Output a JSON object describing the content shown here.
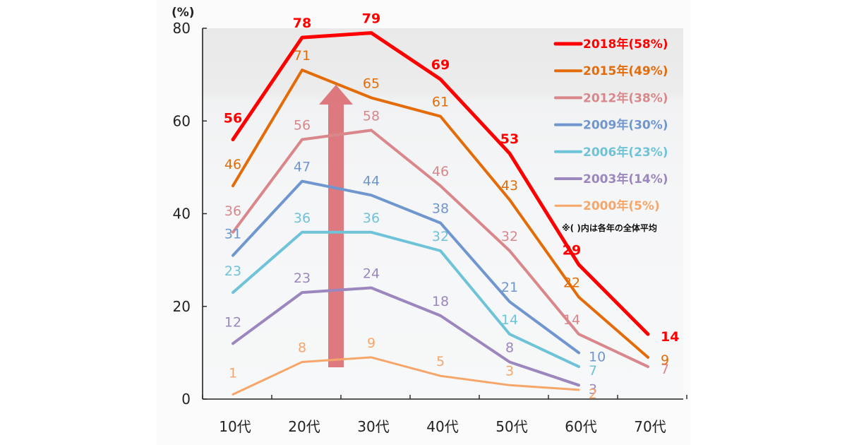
{
  "chart_data": {
    "type": "line",
    "title": "",
    "xlabel": "",
    "ylabel": "(%)",
    "ylim": [
      0,
      80
    ],
    "yticks": [
      0,
      20,
      40,
      60,
      80
    ],
    "grid": false,
    "legend_position": "top-right",
    "categories": [
      "10代",
      "20代",
      "30代",
      "40代",
      "50代",
      "60代",
      "70代"
    ],
    "series": [
      {
        "name": "2018年(58%)",
        "color": "#ff0000",
        "bold": true,
        "values": [
          56,
          78,
          79,
          69,
          53,
          29,
          14
        ]
      },
      {
        "name": "2015年(49%)",
        "color": "#e36c09",
        "bold": false,
        "values": [
          46,
          71,
          65,
          61,
          43,
          22,
          9
        ]
      },
      {
        "name": "2012年(38%)",
        "color": "#d9878a",
        "bold": false,
        "values": [
          36,
          56,
          58,
          46,
          32,
          14,
          7
        ]
      },
      {
        "name": "2009年(30%)",
        "color": "#7096cf",
        "bold": false,
        "values": [
          31,
          47,
          44,
          38,
          21,
          10,
          null
        ]
      },
      {
        "name": "2006年(23%)",
        "color": "#6fc3d9",
        "bold": false,
        "values": [
          23,
          36,
          36,
          32,
          14,
          7,
          null
        ]
      },
      {
        "name": "2003年(14%)",
        "color": "#9b86bd",
        "bold": false,
        "values": [
          12,
          23,
          24,
          18,
          8,
          3,
          null
        ]
      },
      {
        "name": "2000年(5%)",
        "color": "#f7a66a",
        "bold": false,
        "values": [
          1,
          8,
          9,
          5,
          3,
          2,
          null
        ]
      }
    ],
    "annotations": [
      {
        "type": "arrow",
        "direction": "up",
        "color": "#d9646a",
        "meaning": "increase over years"
      },
      {
        "type": "note",
        "text": "※( )内は各年の全体平均"
      }
    ]
  }
}
